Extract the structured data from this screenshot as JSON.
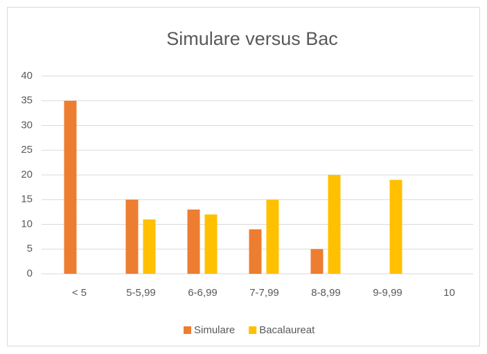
{
  "chart_data": {
    "type": "bar",
    "title": "Simulare versus Bac",
    "categories": [
      "< 5",
      "5-5,99",
      "6-6,99",
      "7-7,99",
      "8-8,99",
      "9-9,99",
      "10"
    ],
    "series": [
      {
        "name": "Simulare",
        "color": "#ed7d31",
        "values": [
          35,
          15,
          13,
          9,
          5,
          0,
          0
        ]
      },
      {
        "name": "Bacalaureat",
        "color": "#ffc000",
        "values": [
          0,
          11,
          12,
          15,
          20,
          19,
          0
        ]
      }
    ],
    "ylim": [
      0,
      40
    ],
    "yticks": [
      0,
      5,
      10,
      15,
      20,
      25,
      30,
      35,
      40
    ],
    "grid": true,
    "legend": "bottom"
  }
}
